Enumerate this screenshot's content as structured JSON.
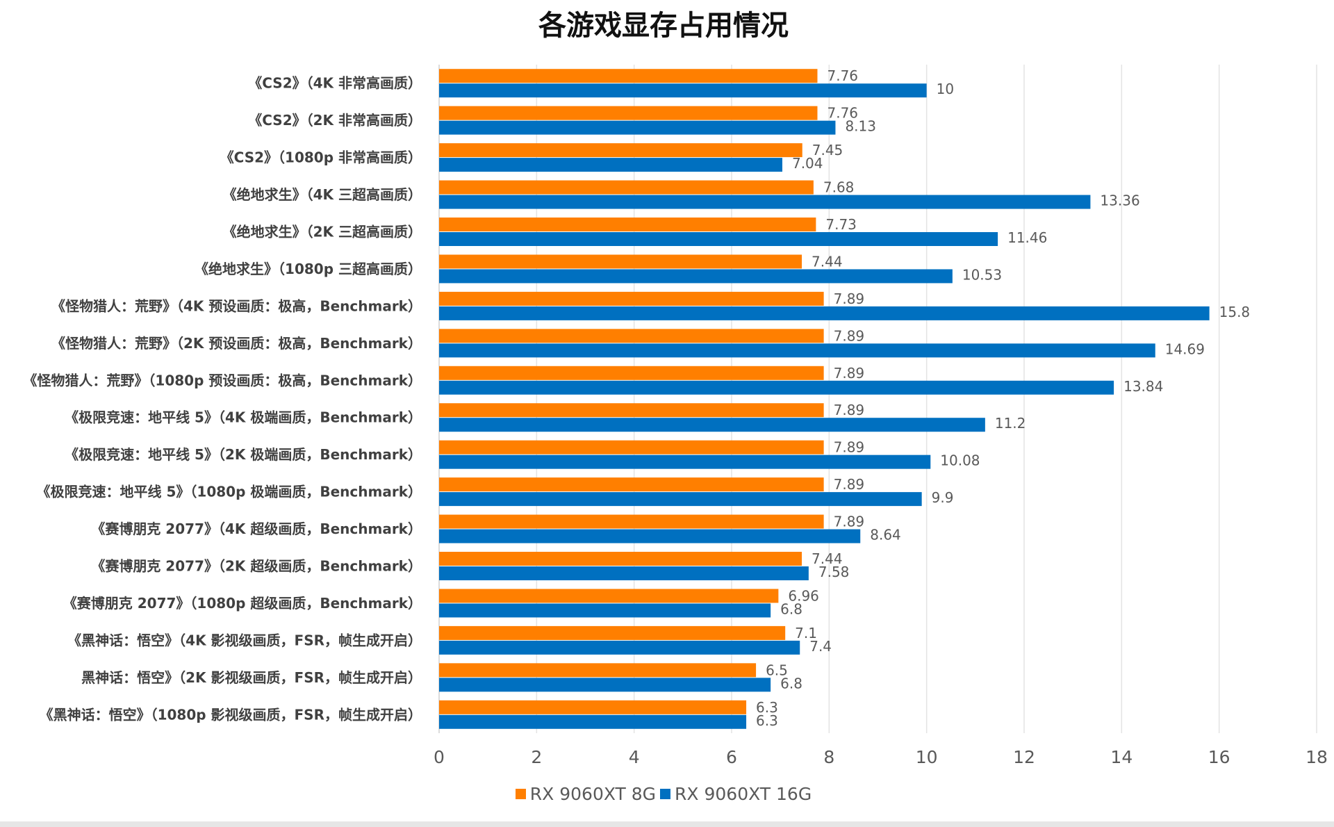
{
  "chart_data": {
    "type": "bar",
    "orientation": "horizontal",
    "title": "各游戏显存占用情况",
    "categories": [
      "《CS2》（4K 非常高画质）",
      "《CS2》（2K 非常高画质）",
      "《CS2》（1080p 非常高画质）",
      "《绝地求生》（4K 三超高画质）",
      "《绝地求生》（2K 三超高画质）",
      "《绝地求生》（1080p 三超高画质）",
      "《怪物猎人：荒野》（4K 预设画质：极高，Benchmark）",
      "《怪物猎人：荒野》（2K 预设画质：极高，Benchmark）",
      "《怪物猎人：荒野》（1080p 预设画质：极高，Benchmark）",
      "《极限竞速：地平线 5》（4K 极端画质，Benchmark）",
      "《极限竞速：地平线 5》（2K 极端画质，Benchmark）",
      "《极限竞速：地平线 5》（1080p 极端画质，Benchmark）",
      "《赛博朋克 2077》（4K 超级画质，Benchmark）",
      "《赛博朋克 2077》（2K 超级画质，Benchmark）",
      "《赛博朋克 2077》（1080p 超级画质，Benchmark）",
      "《黑神话：悟空》（4K 影视级画质，FSR，帧生成开启）",
      "黑神话：悟空》（2K 影视级画质，FSR，帧生成开启）",
      "《黑神话：悟空》（1080p 影视级画质，FSR，帧生成开启）"
    ],
    "series": [
      {
        "name": "RX 9060XT 8G",
        "color": "#FF7F00",
        "values": [
          7.76,
          7.76,
          7.45,
          7.68,
          7.73,
          7.44,
          7.89,
          7.89,
          7.89,
          7.89,
          7.89,
          7.89,
          7.89,
          7.44,
          6.96,
          7.1,
          6.5,
          6.3
        ]
      },
      {
        "name": "RX 9060XT 16G",
        "color": "#0070C0",
        "values": [
          10,
          8.13,
          7.04,
          13.36,
          11.46,
          10.53,
          15.8,
          14.69,
          13.84,
          11.2,
          10.08,
          9.9,
          8.64,
          7.58,
          6.8,
          7.4,
          6.8,
          6.3
        ]
      }
    ],
    "xlim": [
      0,
      18
    ],
    "xticks": [
      0,
      2,
      4,
      6,
      8,
      10,
      12,
      14,
      16,
      18
    ],
    "grid": true,
    "legend": "bottom"
  }
}
